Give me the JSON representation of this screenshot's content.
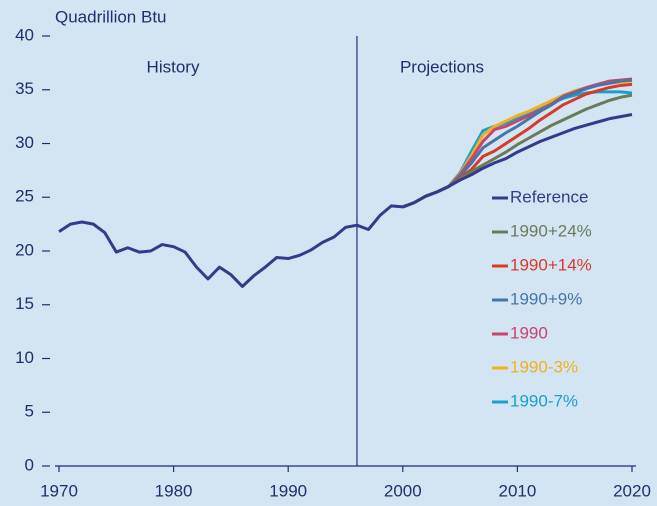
{
  "chart_data": {
    "type": "line",
    "y_label": "Quadrillion Btu",
    "annotations": [
      "History",
      "Projections"
    ],
    "divider_x": 1996,
    "x": [
      1970,
      1971,
      1972,
      1973,
      1974,
      1975,
      1976,
      1977,
      1978,
      1979,
      1980,
      1981,
      1982,
      1983,
      1984,
      1985,
      1986,
      1987,
      1988,
      1989,
      1990,
      1991,
      1992,
      1993,
      1994,
      1995,
      1996,
      1997,
      1998,
      1999,
      2000,
      2001,
      2002,
      2003,
      2004,
      2005,
      2006,
      2007,
      2008,
      2009,
      2010,
      2011,
      2012,
      2013,
      2014,
      2015,
      2016,
      2017,
      2018,
      2019,
      2020
    ],
    "xlim": [
      1970,
      2020
    ],
    "xticks": [
      1970,
      1980,
      1990,
      2000,
      2010,
      2020
    ],
    "ylim": [
      0,
      40
    ],
    "yticks": [
      0,
      5,
      10,
      15,
      20,
      25,
      30,
      35,
      40
    ],
    "series": [
      {
        "name": "Reference",
        "color": "#343b8c",
        "values": [
          21.8,
          22.5,
          22.7,
          22.5,
          21.7,
          19.9,
          20.3,
          19.9,
          20.0,
          20.6,
          20.4,
          19.9,
          18.5,
          17.4,
          18.5,
          17.8,
          16.7,
          17.7,
          18.5,
          19.4,
          19.3,
          19.6,
          20.1,
          20.8,
          21.3,
          22.2,
          22.4,
          22.0,
          23.3,
          24.2,
          24.1,
          24.5,
          25.1,
          25.5,
          26.0,
          26.6,
          27.1,
          27.7,
          28.2,
          28.6,
          29.2,
          29.7,
          30.2,
          30.6,
          31.0,
          31.4,
          31.7,
          32.0,
          32.3,
          32.5,
          32.7
        ]
      },
      {
        "name": "1990+24%",
        "color": "#6b7b59",
        "values": [
          null,
          null,
          null,
          null,
          null,
          null,
          null,
          null,
          null,
          null,
          null,
          null,
          null,
          null,
          null,
          null,
          null,
          null,
          null,
          null,
          null,
          null,
          null,
          null,
          null,
          null,
          null,
          null,
          null,
          null,
          24.1,
          24.5,
          25.1,
          25.5,
          26.0,
          26.7,
          27.4,
          28.0,
          28.6,
          29.2,
          29.9,
          30.5,
          31.1,
          31.7,
          32.2,
          32.7,
          33.2,
          33.6,
          34.0,
          34.3,
          34.5
        ]
      },
      {
        "name": "1990+14%",
        "color": "#d83a2a",
        "values": [
          null,
          null,
          null,
          null,
          null,
          null,
          null,
          null,
          null,
          null,
          null,
          null,
          null,
          null,
          null,
          null,
          null,
          null,
          null,
          null,
          null,
          null,
          null,
          null,
          null,
          null,
          null,
          null,
          null,
          null,
          24.1,
          24.5,
          25.1,
          25.5,
          26.0,
          26.8,
          27.6,
          28.8,
          29.3,
          30.0,
          30.7,
          31.4,
          32.2,
          32.9,
          33.6,
          34.1,
          34.6,
          34.9,
          35.2,
          35.4,
          35.5
        ]
      },
      {
        "name": "1990+9%",
        "color": "#4875a8",
        "values": [
          null,
          null,
          null,
          null,
          null,
          null,
          null,
          null,
          null,
          null,
          null,
          null,
          null,
          null,
          null,
          null,
          null,
          null,
          null,
          null,
          null,
          null,
          null,
          null,
          null,
          null,
          null,
          null,
          null,
          null,
          24.1,
          24.5,
          25.1,
          25.5,
          26.0,
          27.0,
          28.2,
          29.6,
          30.3,
          31.0,
          31.6,
          32.3,
          33.0,
          33.6,
          34.3,
          34.7,
          35.1,
          35.4,
          35.6,
          35.8,
          35.9
        ]
      },
      {
        "name": "1990",
        "color": "#c9446e",
        "values": [
          null,
          null,
          null,
          null,
          null,
          null,
          null,
          null,
          null,
          null,
          null,
          null,
          null,
          null,
          null,
          null,
          null,
          null,
          null,
          null,
          null,
          null,
          null,
          null,
          null,
          null,
          null,
          null,
          null,
          null,
          24.1,
          24.5,
          25.1,
          25.5,
          26.0,
          27.1,
          28.6,
          30.2,
          31.3,
          31.6,
          32.1,
          32.6,
          33.1,
          33.7,
          34.4,
          34.8,
          35.2,
          35.5,
          35.8,
          35.9,
          36.0
        ]
      },
      {
        "name": "1990-3%",
        "color": "#f2b11c",
        "values": [
          null,
          null,
          null,
          null,
          null,
          null,
          null,
          null,
          null,
          null,
          null,
          null,
          null,
          null,
          null,
          null,
          null,
          null,
          null,
          null,
          null,
          null,
          null,
          null,
          null,
          null,
          null,
          null,
          null,
          null,
          24.1,
          24.5,
          25.1,
          25.5,
          26.0,
          27.2,
          28.9,
          30.8,
          31.6,
          32.1,
          32.6,
          33.0,
          33.5,
          34.0,
          34.5,
          34.9,
          35.2,
          35.4,
          35.6,
          35.7,
          35.8
        ]
      },
      {
        "name": "1990-7%",
        "color": "#1aa0cf",
        "values": [
          null,
          null,
          null,
          null,
          null,
          null,
          null,
          null,
          null,
          null,
          null,
          null,
          null,
          null,
          null,
          null,
          null,
          null,
          null,
          null,
          null,
          null,
          null,
          null,
          null,
          null,
          null,
          null,
          null,
          null,
          24.1,
          24.5,
          25.1,
          25.5,
          26.0,
          27.3,
          29.3,
          31.2,
          31.6,
          31.9,
          32.3,
          32.8,
          33.3,
          33.8,
          34.2,
          34.5,
          34.7,
          34.8,
          34.8,
          34.8,
          34.7
        ]
      }
    ]
  }
}
